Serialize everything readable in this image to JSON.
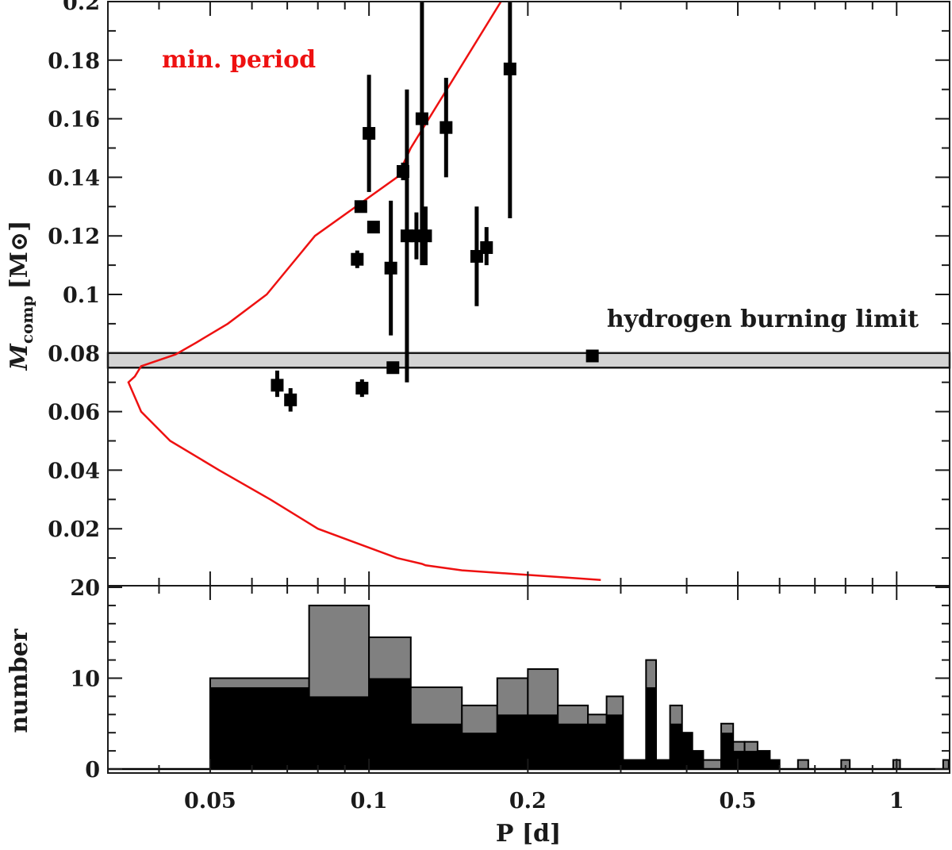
{
  "chart_data": [
    {
      "type": "scatter",
      "title": "",
      "xlabel": "P [d]",
      "ylabel": "M",
      "ylabel_subscript": "comp",
      "ylabel_units": "[M⊙]",
      "x_scale": "log",
      "xlim": [
        0.032,
        1.26
      ],
      "ylim": [
        0.0,
        0.2
      ],
      "y_ticks": [
        "0.02",
        "0.04",
        "0.06",
        "0.08",
        "0.1",
        "0.12",
        "0.14",
        "0.16",
        "0.18",
        "0.2"
      ],
      "hbl_band": {
        "label": "hydrogen burning limit",
        "y_low": 0.075,
        "y_high": 0.08,
        "color": "#d3d3d3"
      },
      "min_period": {
        "label": "min. period",
        "color": "#ee1111",
        "x": [
          0.185,
          0.12,
          0.113,
          0.079,
          0.064,
          0.054,
          0.047,
          0.043,
          0.037,
          0.036,
          0.035,
          0.037,
          0.042,
          0.052,
          0.065,
          0.08,
          0.095,
          0.113,
          0.126,
          0.128,
          0.15,
          0.19,
          0.23,
          0.275
        ],
        "y": [
          0.205,
          0.15,
          0.14,
          0.12,
          0.1,
          0.09,
          0.0835,
          0.0795,
          0.0755,
          0.072,
          0.07,
          0.06,
          0.05,
          0.04,
          0.03,
          0.02,
          0.015,
          0.01,
          0.008,
          0.0075,
          0.0058,
          0.0045,
          0.0035,
          0.0025
        ]
      },
      "points": [
        {
          "x": 0.067,
          "y": 0.069,
          "yerr_low": 0.065,
          "yerr_high": 0.074
        },
        {
          "x": 0.071,
          "y": 0.064,
          "yerr_low": 0.06,
          "yerr_high": 0.068
        },
        {
          "x": 0.095,
          "y": 0.112,
          "yerr_low": 0.109,
          "yerr_high": 0.115
        },
        {
          "x": 0.0965,
          "y": 0.13,
          "yerr_low": 0.128,
          "yerr_high": 0.132
        },
        {
          "x": 0.097,
          "y": 0.068,
          "yerr_low": 0.065,
          "yerr_high": 0.071
        },
        {
          "x": 0.1,
          "y": 0.155,
          "yerr_low": 0.135,
          "yerr_high": 0.175
        },
        {
          "x": 0.102,
          "y": 0.123,
          "yerr_low": 0.121,
          "yerr_high": 0.125
        },
        {
          "x": 0.11,
          "y": 0.109,
          "yerr_low": 0.086,
          "yerr_high": 0.132
        },
        {
          "x": 0.111,
          "y": 0.075,
          "yerr_low": 0.073,
          "yerr_high": 0.077
        },
        {
          "x": 0.116,
          "y": 0.142,
          "yerr_low": 0.139,
          "yerr_high": 0.145
        },
        {
          "x": 0.118,
          "y": 0.12,
          "yerr_low": 0.07,
          "yerr_high": 0.17
        },
        {
          "x": 0.123,
          "y": 0.12,
          "yerr_low": 0.112,
          "yerr_high": 0.128
        },
        {
          "x": 0.126,
          "y": 0.16,
          "yerr_low": 0.11,
          "yerr_high": 0.21
        },
        {
          "x": 0.128,
          "y": 0.12,
          "yerr_low": 0.11,
          "yerr_high": 0.13
        },
        {
          "x": 0.14,
          "y": 0.157,
          "yerr_low": 0.14,
          "yerr_high": 0.174
        },
        {
          "x": 0.16,
          "y": 0.113,
          "yerr_low": 0.096,
          "yerr_high": 0.13
        },
        {
          "x": 0.167,
          "y": 0.116,
          "yerr_low": 0.11,
          "yerr_high": 0.123
        },
        {
          "x": 0.185,
          "y": 0.177,
          "yerr_low": 0.126,
          "yerr_high": 0.21
        },
        {
          "x": 0.265,
          "y": 0.079,
          "yerr_low": 0.078,
          "yerr_high": 0.08
        }
      ]
    },
    {
      "type": "bar",
      "title": "",
      "xlabel": "P [d]",
      "ylabel": "number",
      "x_scale": "log",
      "xlim": [
        0.032,
        1.26
      ],
      "ylim": [
        0,
        22
      ],
      "x_ticks": [
        "0.05",
        "0.1",
        "0.2",
        "0.5",
        "1"
      ],
      "y_ticks": [
        "0",
        "10",
        "20"
      ],
      "series": [
        {
          "color": "#808080",
          "bins": [
            {
              "x0": 0.05,
              "x1": 0.077,
              "value": 10
            },
            {
              "x0": 0.077,
              "x1": 0.1,
              "value": 18
            },
            {
              "x0": 0.1,
              "x1": 0.12,
              "value": 14.5
            },
            {
              "x0": 0.12,
              "x1": 0.15,
              "value": 9
            },
            {
              "x0": 0.15,
              "x1": 0.175,
              "value": 7
            },
            {
              "x0": 0.175,
              "x1": 0.2,
              "value": 10
            },
            {
              "x0": 0.2,
              "x1": 0.228,
              "value": 11
            },
            {
              "x0": 0.228,
              "x1": 0.26,
              "value": 7
            },
            {
              "x0": 0.26,
              "x1": 0.282,
              "value": 6
            },
            {
              "x0": 0.282,
              "x1": 0.303,
              "value": 8
            },
            {
              "x0": 0.303,
              "x1": 0.335,
              "value": 1
            },
            {
              "x0": 0.335,
              "x1": 0.35,
              "value": 12
            },
            {
              "x0": 0.35,
              "x1": 0.372,
              "value": 1
            },
            {
              "x0": 0.372,
              "x1": 0.392,
              "value": 7
            },
            {
              "x0": 0.392,
              "x1": 0.41,
              "value": 4
            },
            {
              "x0": 0.41,
              "x1": 0.43,
              "value": 2
            },
            {
              "x0": 0.43,
              "x1": 0.465,
              "value": 1
            },
            {
              "x0": 0.465,
              "x1": 0.49,
              "value": 5
            },
            {
              "x0": 0.49,
              "x1": 0.515,
              "value": 3
            },
            {
              "x0": 0.515,
              "x1": 0.545,
              "value": 3
            },
            {
              "x0": 0.545,
              "x1": 0.575,
              "value": 2
            },
            {
              "x0": 0.575,
              "x1": 0.6,
              "value": 1
            },
            {
              "x0": 0.65,
              "x1": 0.68,
              "value": 1
            },
            {
              "x0": 0.785,
              "x1": 0.815,
              "value": 1
            },
            {
              "x0": 0.985,
              "x1": 1.015,
              "value": 1
            },
            {
              "x0": 1.225,
              "x1": 1.255,
              "value": 1
            }
          ]
        },
        {
          "color": "#000000",
          "bins": [
            {
              "x0": 0.05,
              "x1": 0.077,
              "value": 9
            },
            {
              "x0": 0.077,
              "x1": 0.1,
              "value": 8
            },
            {
              "x0": 0.1,
              "x1": 0.12,
              "value": 10
            },
            {
              "x0": 0.12,
              "x1": 0.15,
              "value": 5
            },
            {
              "x0": 0.15,
              "x1": 0.175,
              "value": 4
            },
            {
              "x0": 0.175,
              "x1": 0.2,
              "value": 6
            },
            {
              "x0": 0.2,
              "x1": 0.228,
              "value": 6
            },
            {
              "x0": 0.228,
              "x1": 0.26,
              "value": 5
            },
            {
              "x0": 0.26,
              "x1": 0.282,
              "value": 5
            },
            {
              "x0": 0.282,
              "x1": 0.303,
              "value": 6
            },
            {
              "x0": 0.303,
              "x1": 0.335,
              "value": 1
            },
            {
              "x0": 0.335,
              "x1": 0.35,
              "value": 9
            },
            {
              "x0": 0.35,
              "x1": 0.372,
              "value": 1
            },
            {
              "x0": 0.372,
              "x1": 0.392,
              "value": 5
            },
            {
              "x0": 0.392,
              "x1": 0.41,
              "value": 4
            },
            {
              "x0": 0.41,
              "x1": 0.43,
              "value": 2
            },
            {
              "x0": 0.43,
              "x1": 0.465,
              "value": 0
            },
            {
              "x0": 0.465,
              "x1": 0.49,
              "value": 4
            },
            {
              "x0": 0.49,
              "x1": 0.515,
              "value": 2
            },
            {
              "x0": 0.515,
              "x1": 0.545,
              "value": 2
            },
            {
              "x0": 0.545,
              "x1": 0.575,
              "value": 2
            },
            {
              "x0": 0.575,
              "x1": 0.6,
              "value": 1
            },
            {
              "x0": 0.65,
              "x1": 0.68,
              "value": 0
            },
            {
              "x0": 0.785,
              "x1": 0.815,
              "value": 0
            },
            {
              "x0": 0.985,
              "x1": 1.015,
              "value": 0
            },
            {
              "x0": 1.225,
              "x1": 1.255,
              "value": 0
            }
          ]
        }
      ]
    }
  ]
}
